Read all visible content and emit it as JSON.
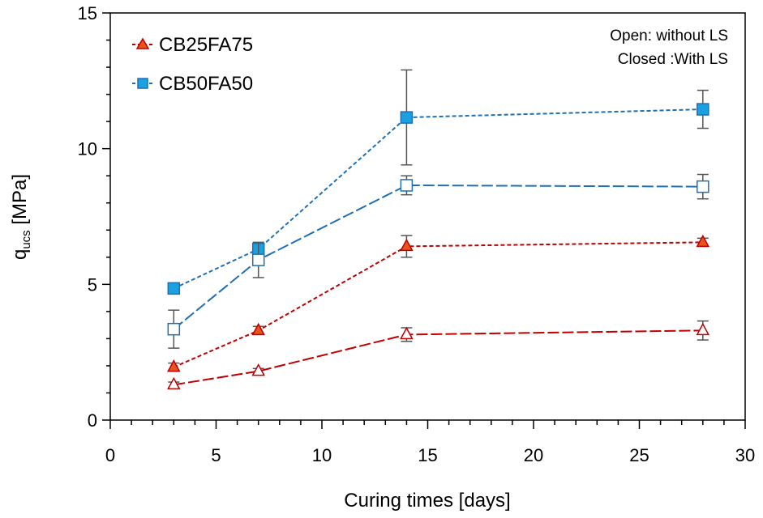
{
  "chart_data": {
    "type": "line",
    "xlabel": "Curing times [days]",
    "ylabel_main": "q",
    "ylabel_sub": "ucs",
    "ylabel_unit": " [MPa]",
    "xlim": [
      0,
      30
    ],
    "ylim": [
      0,
      15
    ],
    "x_ticks": [
      0,
      5,
      10,
      15,
      20,
      25,
      30
    ],
    "y_ticks": [
      0,
      5,
      10,
      15
    ],
    "x_tick_labels": [
      "0",
      "5",
      "10",
      "15",
      "20",
      "25",
      "30"
    ],
    "y_tick_labels": [
      "0",
      "5",
      "10",
      "15"
    ],
    "legend": [
      {
        "label": "CB25FA75",
        "marker": "triangle",
        "color": "#c00000",
        "fill": "#e8541c"
      },
      {
        "label": "CB50FA50",
        "marker": "square",
        "color": "#1f6fb3",
        "fill": "#1ba1e2"
      }
    ],
    "annotations": [
      "Open: without LS",
      "Closed :With LS"
    ],
    "series": [
      {
        "name": "CB50FA50 with LS",
        "marker": "square",
        "filled": true,
        "color": "#1f6fb3",
        "fill": "#1ba1e2",
        "dash": "short",
        "x": [
          3,
          7,
          14,
          28
        ],
        "y": [
          4.85,
          6.3,
          11.15,
          11.45
        ],
        "err": [
          0.2,
          0.2,
          1.75,
          0.7
        ]
      },
      {
        "name": "CB50FA50 without LS",
        "marker": "square",
        "filled": false,
        "color": "#1f6fb3",
        "fill": "#ffffff",
        "dash": "long",
        "x": [
          3,
          7,
          14,
          28
        ],
        "y": [
          3.35,
          5.9,
          8.65,
          8.6
        ],
        "err": [
          0.7,
          0.65,
          0.35,
          0.45
        ]
      },
      {
        "name": "CB25FA75 with LS",
        "marker": "triangle",
        "filled": true,
        "color": "#c00000",
        "fill": "#e8541c",
        "dash": "short",
        "x": [
          3,
          7,
          14,
          28
        ],
        "y": [
          1.95,
          3.3,
          6.4,
          6.55
        ],
        "err": [
          0.15,
          0.15,
          0.4,
          0.15
        ]
      },
      {
        "name": "CB25FA75 without LS",
        "marker": "triangle",
        "filled": false,
        "color": "#c00000",
        "fill": "#ffffff",
        "dash": "long",
        "x": [
          3,
          7,
          14,
          28
        ],
        "y": [
          1.3,
          1.8,
          3.15,
          3.3
        ],
        "err": [
          0.1,
          0.1,
          0.25,
          0.35
        ]
      }
    ]
  }
}
